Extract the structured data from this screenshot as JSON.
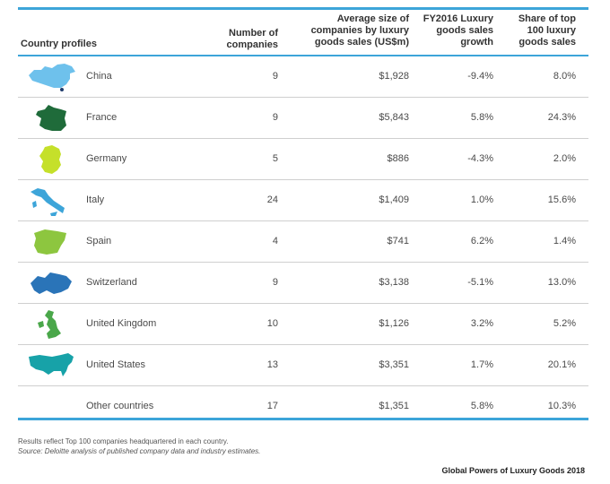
{
  "header": {
    "country": "Country profiles",
    "number": [
      "Number of",
      "companies"
    ],
    "avg": [
      "Average size of",
      "companies by luxury",
      "goods sales (US$m)"
    ],
    "fy": [
      "FY2016 Luxury",
      "goods sales",
      "growth"
    ],
    "share": [
      "Share of top",
      "100 luxury",
      "goods sales"
    ]
  },
  "rows": [
    {
      "country": "China",
      "number": "9",
      "avg": "$1,928",
      "growth": "-9.4%",
      "share": "8.0%",
      "map_icon": "china-map-icon",
      "color": "#6ec1ec"
    },
    {
      "country": "France",
      "number": "9",
      "avg": "$5,843",
      "growth": "5.8%",
      "share": "24.3%",
      "map_icon": "france-map-icon",
      "color": "#1f6b3a"
    },
    {
      "country": "Germany",
      "number": "5",
      "avg": "$886",
      "growth": "-4.3%",
      "share": "2.0%",
      "map_icon": "germany-map-icon",
      "color": "#c5e02a"
    },
    {
      "country": "Italy",
      "number": "24",
      "avg": "$1,409",
      "growth": "1.0%",
      "share": "15.6%",
      "map_icon": "italy-map-icon",
      "color": "#3da5d9"
    },
    {
      "country": "Spain",
      "number": "4",
      "avg": "$741",
      "growth": "6.2%",
      "share": "1.4%",
      "map_icon": "spain-map-icon",
      "color": "#8dc63f"
    },
    {
      "country": "Switzerland",
      "number": "9",
      "avg": "$3,138",
      "growth": "-5.1%",
      "share": "13.0%",
      "map_icon": "switzerland-map-icon",
      "color": "#2a74b8"
    },
    {
      "country": "United Kingdom",
      "number": "10",
      "avg": "$1,126",
      "growth": "3.2%",
      "share": "5.2%",
      "map_icon": "uk-map-icon",
      "color": "#4aa74a"
    },
    {
      "country": "United States",
      "number": "13",
      "avg": "$3,351",
      "growth": "1.7%",
      "share": "20.1%",
      "map_icon": "usa-map-icon",
      "color": "#17a2a8"
    },
    {
      "country": "Other countries",
      "number": "17",
      "avg": "$1,351",
      "growth": "5.8%",
      "share": "10.3%",
      "map_icon": "",
      "color": ""
    }
  ],
  "notes": {
    "line1": "Results reflect Top 100 companies headquartered in each country.",
    "line2": "Source: Deloitte analysis of published company data and industry estimates."
  },
  "footer": "Global Powers of Luxury Goods 2018",
  "colors": {
    "rule": "#3da5d9",
    "divider": "#cfcfcf"
  }
}
